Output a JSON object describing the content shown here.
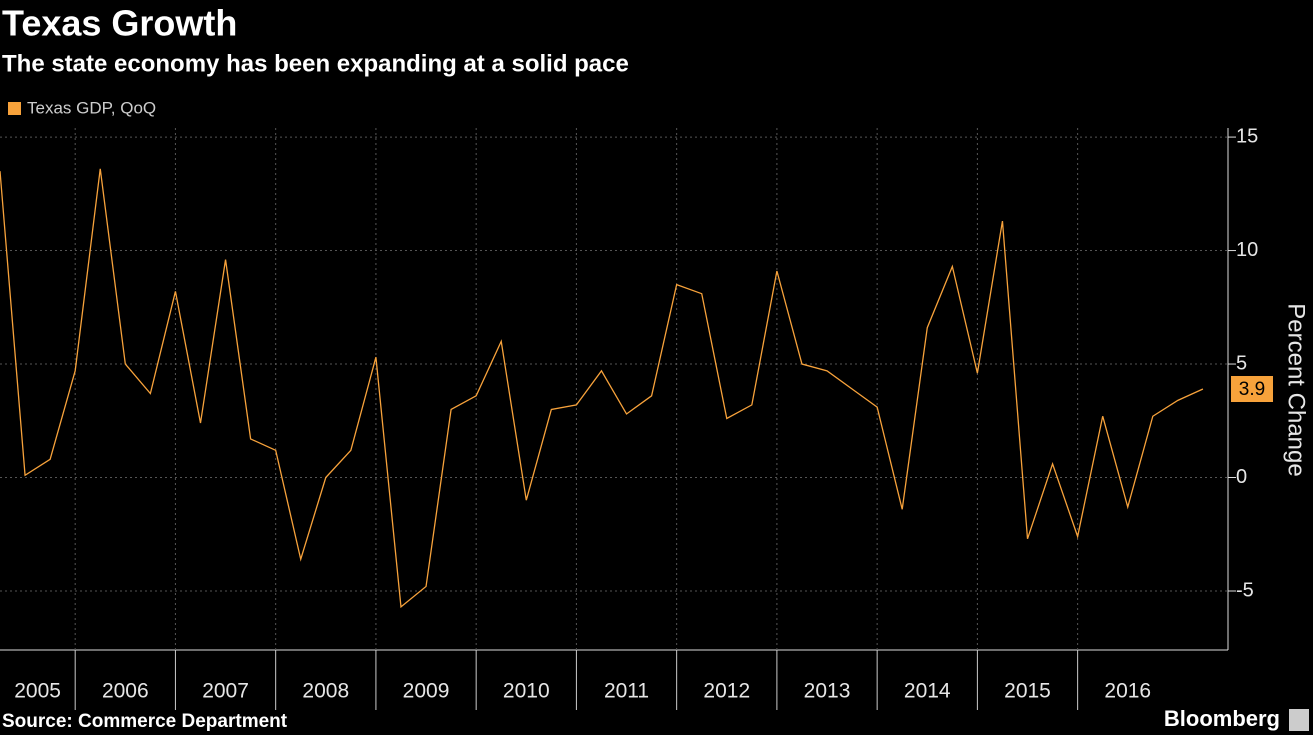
{
  "chart_data": {
    "type": "line",
    "title": "Texas Growth",
    "subtitle": "The state economy has been expanding at a solid pace",
    "source": "Source: Commerce Department",
    "brand": "Bloomberg",
    "y_label": "Percent Change",
    "x": [
      2005.25,
      2005.5,
      2005.75,
      2006,
      2006.25,
      2006.5,
      2006.75,
      2007,
      2007.25,
      2007.5,
      2007.75,
      2008,
      2008.25,
      2008.5,
      2008.75,
      2009,
      2009.25,
      2009.5,
      2009.75,
      2010,
      2010.25,
      2010.5,
      2010.75,
      2011,
      2011.25,
      2011.5,
      2011.75,
      2012,
      2012.25,
      2012.5,
      2012.75,
      2013,
      2013.25,
      2013.5,
      2013.75,
      2014,
      2014.25,
      2014.5,
      2014.75,
      2015,
      2015.25,
      2015.5,
      2015.75,
      2016,
      2016.25,
      2016.5,
      2016.75,
      2017,
      2017.25
    ],
    "series": [
      {
        "name": "Texas GDP, QoQ",
        "color": "#f7a23b",
        "values": [
          13.5,
          0.1,
          0.8,
          4.7,
          13.6,
          5.0,
          3.7,
          8.2,
          2.4,
          9.6,
          1.7,
          1.2,
          -3.6,
          0.0,
          1.2,
          5.3,
          -5.7,
          -4.8,
          3.0,
          3.6,
          6.0,
          -1.0,
          3.0,
          3.2,
          4.7,
          2.8,
          3.6,
          8.5,
          8.1,
          2.6,
          3.2,
          9.1,
          5.0,
          4.7,
          3.9,
          3.1,
          -1.4,
          6.6,
          9.3,
          4.6,
          11.3,
          -2.7,
          0.6,
          -2.6,
          2.7,
          -1.3,
          2.7,
          3.4,
          3.9
        ]
      }
    ],
    "xlim": [
      2005.25,
      2017.5
    ],
    "xticks": [
      2005,
      2006,
      2007,
      2008,
      2009,
      2010,
      2011,
      2012,
      2013,
      2014,
      2015,
      2016
    ],
    "ylim": [
      -7.6,
      15.4
    ],
    "yticks": [
      -5,
      0,
      5,
      10,
      15
    ],
    "grid": true
  }
}
